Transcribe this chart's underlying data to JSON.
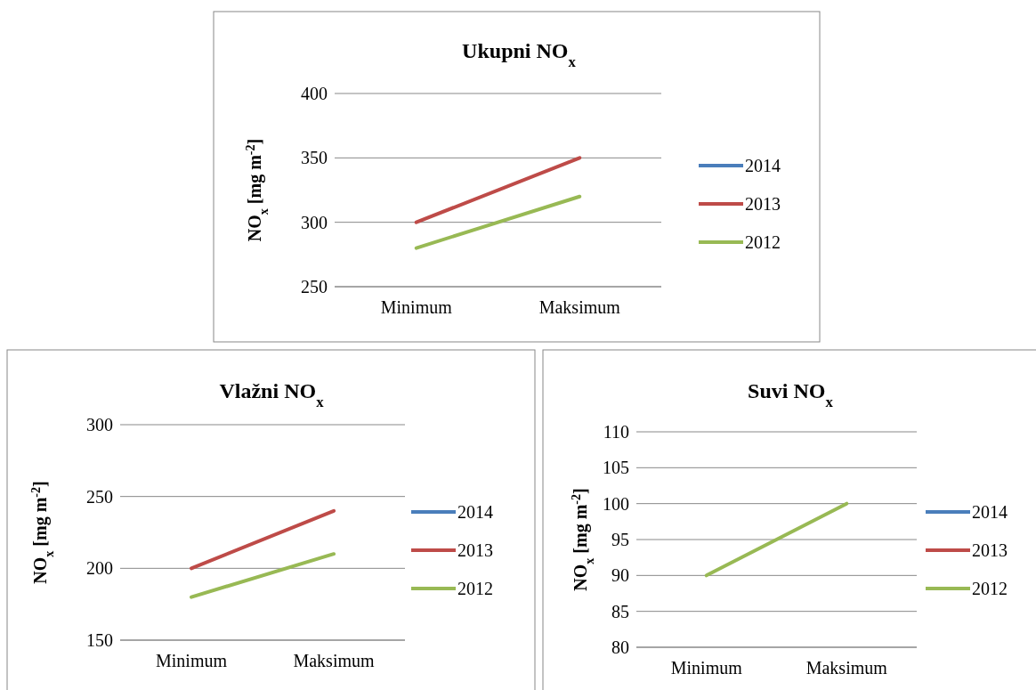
{
  "chart_data": [
    {
      "type": "line",
      "title": "Ukupni NO$_{x}$",
      "ylabel": "NO$_{x}$ [mg m$^{-2}$]",
      "categories": [
        "Minimum",
        "Maksimum"
      ],
      "ylim": [
        250,
        400
      ],
      "yticks": [
        250,
        300,
        350,
        400
      ],
      "grid": "y",
      "legend": "right",
      "series": [
        {
          "name": "2014",
          "color": "#4a7ebb",
          "values": [
            null,
            null
          ]
        },
        {
          "name": "2013",
          "color": "#be4b48",
          "values": [
            300,
            350
          ]
        },
        {
          "name": "2012",
          "color": "#98b954",
          "values": [
            280,
            320
          ]
        }
      ]
    },
    {
      "type": "line",
      "title": "Vlažni NO$_{x}$",
      "ylabel": "NO$_{x}$ [mg m$^{-2}$]",
      "categories": [
        "Minimum",
        "Maksimum"
      ],
      "ylim": [
        150,
        300
      ],
      "yticks": [
        150,
        200,
        250,
        300
      ],
      "grid": "y",
      "legend": "right",
      "series": [
        {
          "name": "2014",
          "color": "#4a7ebb",
          "values": [
            null,
            null
          ]
        },
        {
          "name": "2013",
          "color": "#be4b48",
          "values": [
            200,
            240
          ]
        },
        {
          "name": "2012",
          "color": "#98b954",
          "values": [
            180,
            210
          ]
        }
      ]
    },
    {
      "type": "line",
      "title": "Suvi NO$_{x}$",
      "ylabel": "NO$_{x}$ [mg m$^{-2}$]",
      "categories": [
        "Minimum",
        "Maksimum"
      ],
      "ylim": [
        80,
        110
      ],
      "yticks": [
        80,
        85,
        90,
        95,
        100,
        105,
        110
      ],
      "grid": "y",
      "legend": "right",
      "series": [
        {
          "name": "2014",
          "color": "#4a7ebb",
          "values": [
            null,
            null
          ]
        },
        {
          "name": "2013",
          "color": "#be4b48",
          "values": [
            null,
            null
          ]
        },
        {
          "name": "2012",
          "color": "#98b954",
          "values": [
            90,
            100
          ]
        }
      ]
    }
  ]
}
